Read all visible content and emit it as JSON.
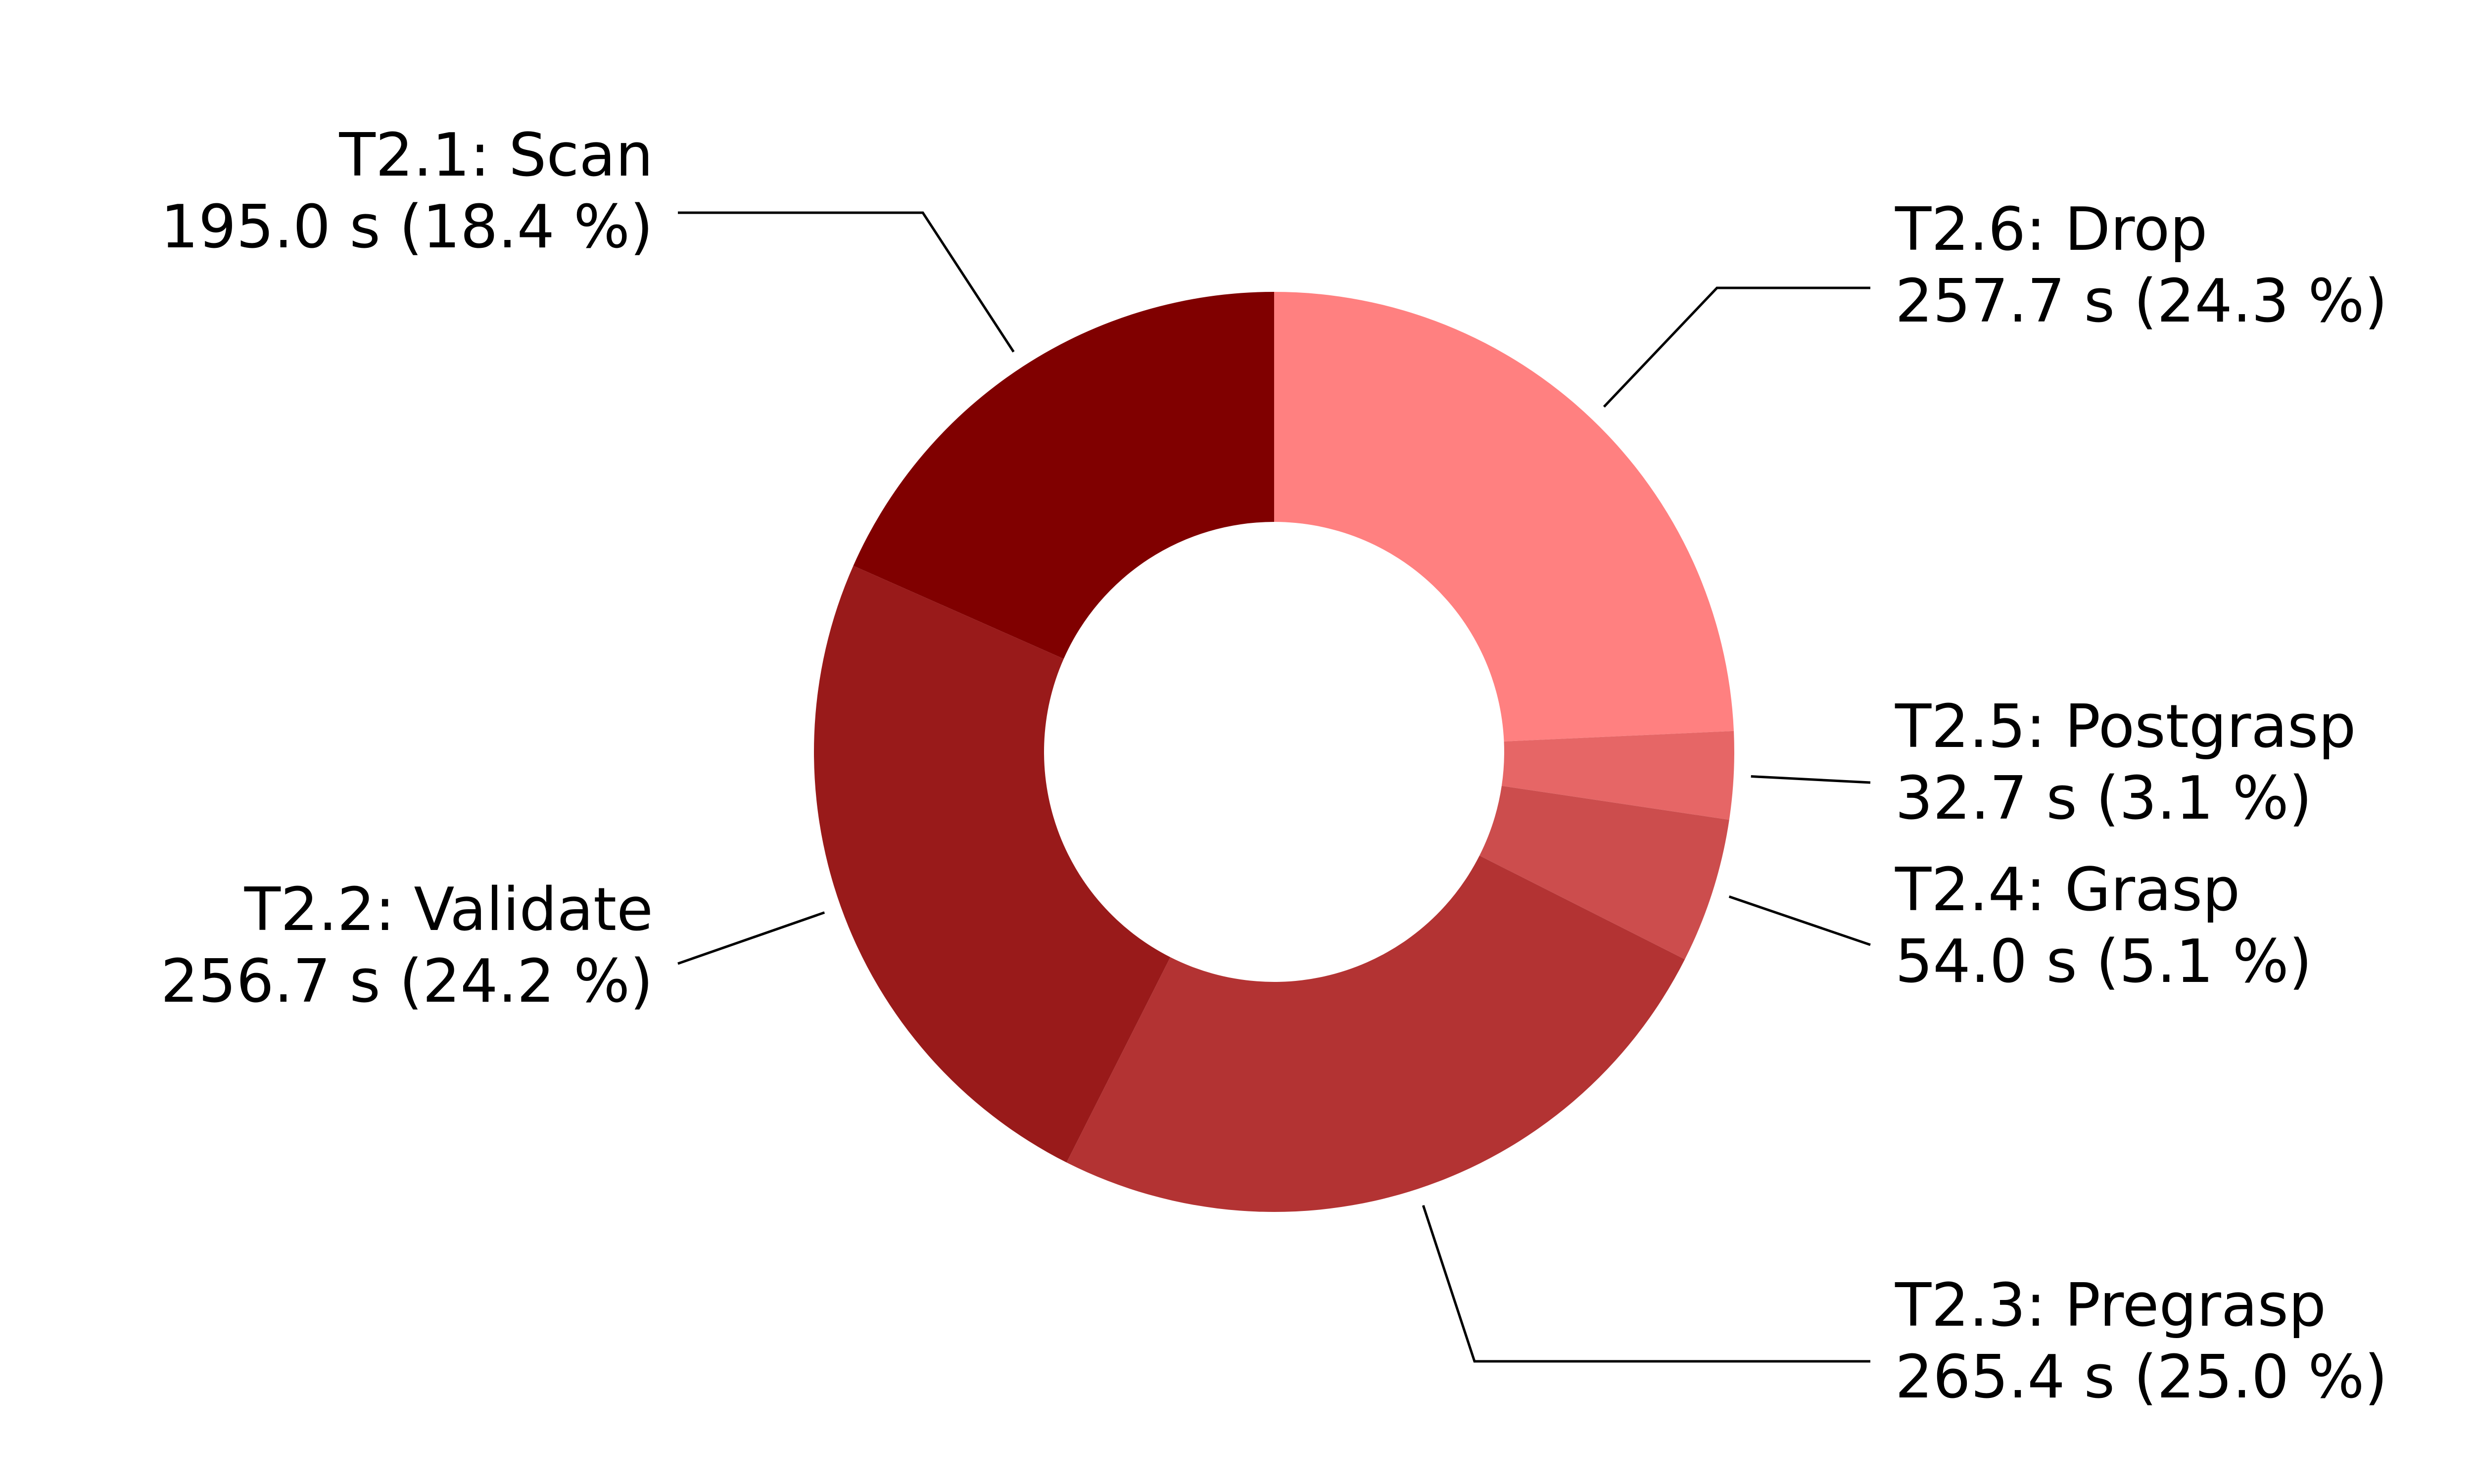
{
  "chart_data": {
    "type": "pie",
    "donut": true,
    "unit": "s",
    "slices": [
      {
        "name": "T2.6: Drop",
        "value": 257.7,
        "value_text": "257.7 s (24.3 %)",
        "color": "#ff8080"
      },
      {
        "name": "T2.5: Postgrasp",
        "value": 32.7,
        "value_text": "32.7 s (3.1 %)",
        "color": "#e66666"
      },
      {
        "name": "T2.4: Grasp",
        "value": 54.0,
        "value_text": "54.0 s (5.1 %)",
        "color": "#cc4d4d"
      },
      {
        "name": "T2.3: Pregrasp",
        "value": 265.4,
        "value_text": "265.4 s (25.0 %)",
        "color": "#b33333"
      },
      {
        "name": "T2.2: Validate",
        "value": 256.7,
        "value_text": "256.7 s (24.2 %)",
        "color": "#991a1a"
      },
      {
        "name": "T2.1: Scan",
        "value": 195.0,
        "value_text": "195.0 s (18.4 %)",
        "color": "#800000"
      }
    ]
  }
}
